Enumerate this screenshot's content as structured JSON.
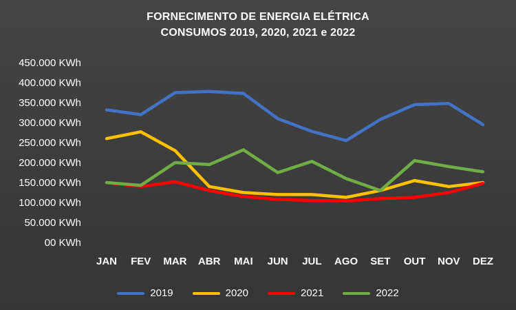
{
  "title_lines": {
    "line1": "FORNECIMENTO DE ENERGIA ELÉTRICA",
    "line2": "CONSUMOS 2019, 2020, 2021 e 2022"
  },
  "chart_data": {
    "type": "line",
    "title": "FORNECIMENTO DE ENERGIA ELÉTRICA CONSUMOS 2019, 2020, 2021 e 2022",
    "categories": [
      "JAN",
      "FEV",
      "MAR",
      "ABR",
      "MAI",
      "JUN",
      "JUL",
      "AGO",
      "SET",
      "OUT",
      "NOV",
      "DEZ"
    ],
    "y_tick_labels": [
      "450.000 KWh",
      "400.000 KWh",
      "350.000 KWh",
      "300.000 KWh",
      "250.000 KWh",
      "200.000 KWh",
      "150.000 KWh",
      "100.000 KWh",
      "50.000 KWh",
      "00 KWh"
    ],
    "ylim": [
      0,
      450000
    ],
    "grid": false,
    "legend_position": "bottom",
    "background_color": "#3c3c3c",
    "text_color": "#ffffff",
    "series": [
      {
        "name": "2019",
        "color": "#4472C4",
        "values": [
          332000,
          320000,
          375000,
          378000,
          373000,
          310000,
          278000,
          255000,
          308000,
          345000,
          348000,
          295000
        ]
      },
      {
        "name": "2020",
        "color": "#FFC000",
        "values": [
          260000,
          277000,
          230000,
          140000,
          125000,
          120000,
          120000,
          113000,
          130000,
          155000,
          140000,
          150000
        ]
      },
      {
        "name": "2021",
        "color": "#FF0000",
        "values": [
          150000,
          140000,
          152000,
          130000,
          115000,
          108000,
          105000,
          104000,
          110000,
          113000,
          125000,
          148000
        ]
      },
      {
        "name": "2022",
        "color": "#70AD47",
        "values": [
          150000,
          143000,
          200000,
          195000,
          232000,
          175000,
          203000,
          160000,
          130000,
          205000,
          190000,
          177000
        ]
      }
    ]
  }
}
